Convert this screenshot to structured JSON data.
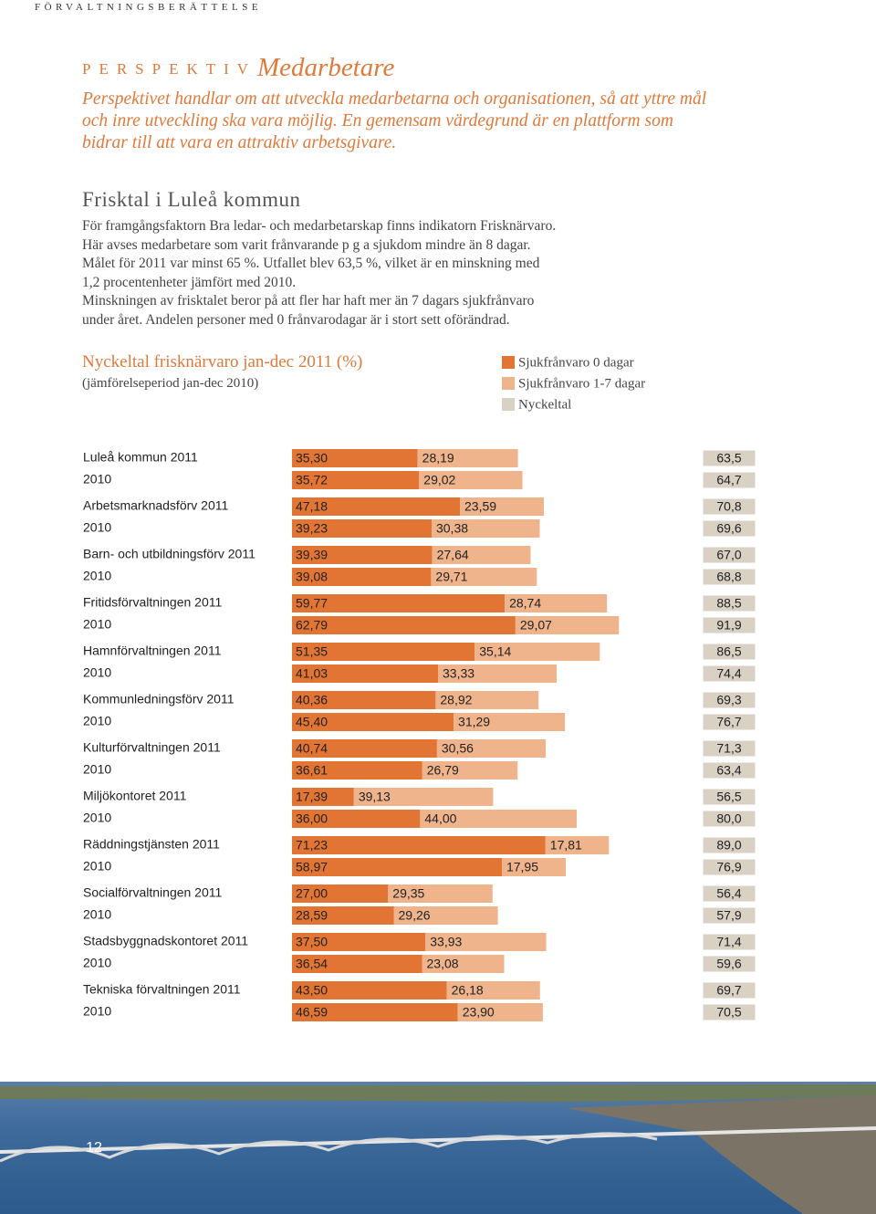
{
  "header": {
    "section": "FÖRVALTNINGSBERÄTTELSE"
  },
  "perspective": {
    "kicker": "PERSPEKTIV",
    "title": "Medarbetare"
  },
  "intro": "Perspektivet handlar om att utveckla medarbetarna och organisationen, så att yttre mål och inre utveckling ska vara möjlig. En gemensam värdegrund är en plattform som bidrar till att vara en attraktiv arbetsgivare.",
  "section": {
    "heading": "Frisktal i Luleå kommun",
    "lines": [
      "För framgångsfaktorn Bra ledar- och medarbetarskap finns indikatorn Frisknärvaro.",
      "Här avses medarbetare som varit frånvarande p g a sjukdom mindre än 8 dagar.",
      "Målet för 2011 var minst 65 %. Utfallet blev 63,5 %, vilket är en minskning med",
      "1,2 procentenheter jämfört med 2010.",
      "Minskningen av frisktalet beror på att fler har haft mer än 7 dagars sjukfrånvaro",
      "under året. Andelen personer med 0 frånvarodagar är i stort sett oförändrad."
    ]
  },
  "chart_data": {
    "type": "bar",
    "orientation": "horizontal",
    "stacked": true,
    "title": "Nyckeltal frisknärvaro jan-dec 2011 (%)",
    "subtitle": "(jämförelseperiod jan-dec 2010)",
    "categories": [
      "Luleå kommun 2011",
      "2010",
      "Arbetsmarknadsförv 2011",
      "2010",
      "Barn- och utbildningsförv 2011",
      "2010",
      "Fritidsförvaltningen 2011",
      "2010",
      "Hamnförvaltningen 2011",
      "2010",
      "Kommunledningsförv 2011",
      "2010",
      "Kulturförvaltningen 2011",
      "2010",
      "Miljökontoret 2011",
      "2010",
      "Räddningstjänsten 2011",
      "2010",
      "Socialförvaltningen 2011",
      "2010",
      "Stadsbyggnadskontoret 2011",
      "2010",
      "Tekniska förvaltningen 2011",
      "2010"
    ],
    "series": [
      {
        "name": "Sjukfrånvaro 0 dagar",
        "color": "#e27534",
        "values": [
          35.3,
          35.72,
          47.18,
          39.23,
          39.39,
          39.08,
          59.77,
          62.79,
          51.35,
          41.03,
          40.36,
          45.4,
          40.74,
          36.61,
          17.39,
          36.0,
          71.23,
          58.97,
          27.0,
          28.59,
          37.5,
          36.54,
          43.5,
          46.59
        ],
        "value_labels": [
          "35,30",
          "35,72",
          "47,18",
          "39,23",
          "39,39",
          "39,08",
          "59,77",
          "62,79",
          "51,35",
          "41,03",
          "40,36",
          "45,40",
          "40,74",
          "36,61",
          "17,39",
          "36,00",
          "71,23",
          "58,97",
          "27,00",
          "28,59",
          "37,50",
          "36,54",
          "43,50",
          "46,59"
        ]
      },
      {
        "name": "Sjukfrånvaro 1-7 dagar",
        "color": "#efb48c",
        "values": [
          28.19,
          29.02,
          23.59,
          30.38,
          27.64,
          29.71,
          28.74,
          29.07,
          35.14,
          33.33,
          28.92,
          31.29,
          30.56,
          26.79,
          39.13,
          44.0,
          17.81,
          17.95,
          29.35,
          29.26,
          33.93,
          23.08,
          26.18,
          23.9
        ],
        "value_labels": [
          "28,19",
          "29,02",
          "23,59",
          "30,38",
          "27,64",
          "29,71",
          "28,74",
          "29,07",
          "35,14",
          "33,33",
          "28,92",
          "31,29",
          "30,56",
          "26,79",
          "39,13",
          "44,00",
          "17,81",
          "17,95",
          "29,35",
          "29,26",
          "33,93",
          "23,08",
          "26,18",
          "23,90"
        ]
      }
    ],
    "key_figures": {
      "name": "Nyckeltal",
      "color": "#d9d1c4",
      "values": [
        63.5,
        64.7,
        70.8,
        69.6,
        67.0,
        68.8,
        88.5,
        91.9,
        86.5,
        74.4,
        69.3,
        76.7,
        71.3,
        63.4,
        56.5,
        80.0,
        89.0,
        76.9,
        56.4,
        57.9,
        71.4,
        59.6,
        69.7,
        70.5
      ],
      "value_labels": [
        "63,5",
        "64,7",
        "70,8",
        "69,6",
        "67,0",
        "68,8",
        "88,5",
        "91,9",
        "86,5",
        "74,4",
        "69,3",
        "76,7",
        "71,3",
        "63,4",
        "56,5",
        "80,0",
        "89,0",
        "76,9",
        "56,4",
        "57,9",
        "71,4",
        "59,6",
        "69,7",
        "70,5"
      ]
    }
  },
  "footer": {
    "page_number": "12"
  }
}
